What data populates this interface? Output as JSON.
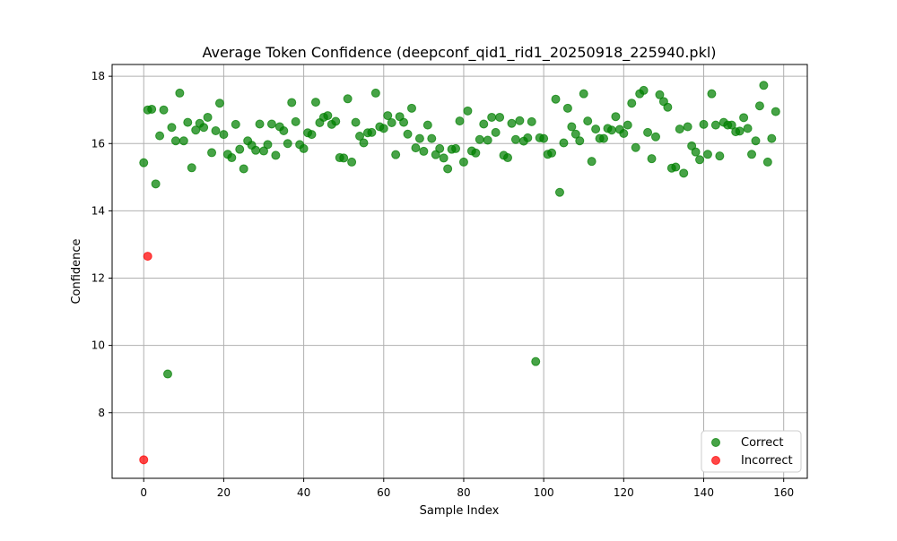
{
  "chart_data": {
    "type": "scatter",
    "title": "Average Token Confidence (deepconf_qid1_rid1_20250918_225940.pkl)",
    "xlabel": "Sample Index",
    "ylabel": "Confidence",
    "xlim": [
      -7.9,
      165.9
    ],
    "ylim": [
      6.05,
      18.35
    ],
    "x_ticks": [
      0,
      20,
      40,
      60,
      80,
      100,
      120,
      140,
      160
    ],
    "y_ticks": [
      8,
      10,
      12,
      14,
      16,
      18
    ],
    "grid": true,
    "legend_position": "lower-right",
    "series": [
      {
        "name": "Correct",
        "color": "#008000",
        "x": [
          0,
          1,
          2,
          3,
          4,
          5,
          6,
          7,
          8,
          9,
          10,
          11,
          12,
          13,
          14,
          15,
          16,
          17,
          18,
          19,
          20,
          21,
          22,
          23,
          24,
          25,
          26,
          27,
          28,
          29,
          30,
          31,
          32,
          33,
          34,
          35,
          36,
          37,
          38,
          39,
          40,
          41,
          42,
          43,
          44,
          45,
          46,
          47,
          48,
          49,
          50,
          51,
          52,
          53,
          54,
          55,
          56,
          57,
          58,
          59,
          60,
          61,
          62,
          63,
          64,
          65,
          66,
          67,
          68,
          69,
          70,
          71,
          72,
          73,
          74,
          75,
          76,
          77,
          78,
          79,
          80,
          81,
          82,
          83,
          84,
          85,
          86,
          87,
          88,
          89,
          90,
          91,
          92,
          93,
          94,
          95,
          96,
          97,
          98,
          99,
          100,
          101,
          102,
          103,
          104,
          105,
          106,
          107,
          108,
          109,
          110,
          111,
          112,
          113,
          114,
          115,
          116,
          117,
          118,
          119,
          120,
          121,
          122,
          123,
          124,
          125,
          126,
          127,
          128,
          129,
          130,
          131,
          132,
          133,
          134,
          135,
          136,
          137,
          138,
          139,
          140,
          141,
          142,
          143,
          144,
          145,
          146,
          147,
          148,
          149,
          150,
          151,
          152,
          153,
          154,
          155,
          156,
          157,
          158
        ],
        "y": [
          15.43,
          17.0,
          17.02,
          14.8,
          16.23,
          17.0,
          9.15,
          16.48,
          16.08,
          17.5,
          16.08,
          16.63,
          15.28,
          16.4,
          16.6,
          16.48,
          16.78,
          15.73,
          16.38,
          17.2,
          16.27,
          15.68,
          15.58,
          16.57,
          15.83,
          15.25,
          16.08,
          15.95,
          15.8,
          16.58,
          15.78,
          15.97,
          16.58,
          15.65,
          16.5,
          16.38,
          16.0,
          17.22,
          16.65,
          15.97,
          15.85,
          16.32,
          16.27,
          17.23,
          16.62,
          16.78,
          16.83,
          16.57,
          16.66,
          15.58,
          15.57,
          17.33,
          15.45,
          16.63,
          16.22,
          16.02,
          16.32,
          16.33,
          17.5,
          16.5,
          16.45,
          16.83,
          16.62,
          15.67,
          16.8,
          16.63,
          16.28,
          17.05,
          15.87,
          16.15,
          15.77,
          16.55,
          16.15,
          15.67,
          15.85,
          15.57,
          15.25,
          15.83,
          15.85,
          16.67,
          15.45,
          16.97,
          15.78,
          15.72,
          16.12,
          16.58,
          16.1,
          16.78,
          16.33,
          16.78,
          15.65,
          15.58,
          16.6,
          16.12,
          16.68,
          16.07,
          16.17,
          16.65,
          9.52,
          16.17,
          16.15,
          15.68,
          15.72,
          17.32,
          14.55,
          16.02,
          17.05,
          16.5,
          16.28,
          16.08,
          17.48,
          16.67,
          15.47,
          16.43,
          16.15,
          16.15,
          16.45,
          16.4,
          16.8,
          16.42,
          16.3,
          16.55,
          17.2,
          15.88,
          17.48,
          17.58,
          16.33,
          15.55,
          16.2,
          17.45,
          17.25,
          17.08,
          15.27,
          15.3,
          16.43,
          15.12,
          16.5,
          15.93,
          15.75,
          15.52,
          16.57,
          15.68,
          17.48,
          16.55,
          15.63,
          16.63,
          16.55,
          16.55,
          16.35,
          16.37,
          16.77,
          16.45,
          15.68,
          16.08,
          17.12,
          17.73,
          15.45,
          16.15,
          16.95
        ]
      },
      {
        "name": "Incorrect",
        "color": "#ff0000",
        "x": [
          0,
          1
        ],
        "y": [
          6.6,
          12.65
        ]
      }
    ]
  }
}
